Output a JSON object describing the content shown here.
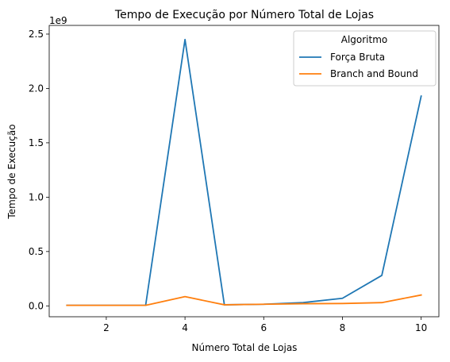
{
  "chart_data": {
    "type": "line",
    "title": "Tempo de Execução por Número Total de Lojas",
    "xlabel": "Número Total de Lojas",
    "ylabel": "Tempo de Execução",
    "y_offset_label": "1e9",
    "x": [
      1,
      2,
      3,
      4,
      5,
      6,
      7,
      8,
      9,
      10
    ],
    "xlim": [
      0.55,
      10.45
    ],
    "ylim": [
      -0.1,
      2.58
    ],
    "x_ticks": [
      2,
      4,
      6,
      8,
      10
    ],
    "x_tick_labels": [
      "2",
      "4",
      "6",
      "8",
      "10"
    ],
    "y_ticks": [
      0.0,
      0.5,
      1.0,
      1.5,
      2.0,
      2.5
    ],
    "y_tick_labels": [
      "0.0",
      "0.5",
      "1.0",
      "1.5",
      "2.0",
      "2.5"
    ],
    "grid": false,
    "legend": {
      "title": "Algoritmo",
      "placement": "top-right"
    },
    "series": [
      {
        "name": "Força Bruta",
        "color": "#1f77b4",
        "values": [
          0.005,
          0.005,
          0.005,
          2.45,
          0.01,
          0.015,
          0.03,
          0.07,
          0.28,
          1.93
        ]
      },
      {
        "name": "Branch and Bound",
        "color": "#ff7f0e",
        "values": [
          0.005,
          0.005,
          0.005,
          0.085,
          0.01,
          0.015,
          0.02,
          0.022,
          0.03,
          0.1
        ]
      }
    ]
  }
}
